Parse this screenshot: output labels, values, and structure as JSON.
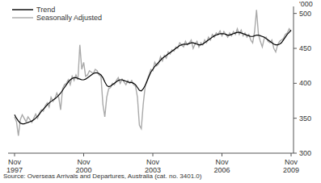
{
  "chart_data": {
    "type": "line",
    "y_label": "'000",
    "source": "Source: Overseas Arrivals and Departures, Australia (cat. no. 3401.0)",
    "legend": "top-left",
    "categories": [
      "Nov 1997",
      null,
      null,
      null,
      null,
      null,
      null,
      null,
      null,
      null,
      null,
      null,
      null,
      null,
      null,
      null,
      null,
      null,
      null,
      null,
      null,
      null,
      null,
      null,
      null,
      null,
      null,
      null,
      null,
      null,
      null,
      null,
      null,
      null,
      null,
      null,
      "Nov 2000",
      null,
      null,
      null,
      null,
      null,
      null,
      null,
      null,
      null,
      null,
      null,
      null,
      null,
      null,
      null,
      null,
      null,
      null,
      null,
      null,
      null,
      null,
      null,
      null,
      null,
      null,
      null,
      null,
      null,
      null,
      null,
      null,
      null,
      null,
      null,
      "Nov 2003",
      null,
      null,
      null,
      null,
      null,
      null,
      null,
      null,
      null,
      null,
      null,
      null,
      null,
      null,
      null,
      null,
      null,
      null,
      null,
      null,
      null,
      null,
      null,
      null,
      null,
      null,
      null,
      null,
      null,
      null,
      null,
      null,
      null,
      null,
      null,
      "Nov 2006",
      null,
      null,
      null,
      null,
      null,
      null,
      null,
      null,
      null,
      null,
      null,
      null,
      null,
      null,
      null,
      null,
      null,
      null,
      null,
      null,
      null,
      null,
      null,
      null,
      null,
      null,
      null,
      null,
      null,
      null,
      null,
      null,
      null,
      null,
      null,
      "Nov 2009"
    ],
    "series": [
      {
        "name": "Trend",
        "color": "#000000",
        "values": [
          355,
          350,
          346,
          343,
          342,
          342,
          343,
          344,
          345,
          346,
          348,
          350,
          353,
          356,
          360,
          363,
          366,
          369,
          372,
          374,
          376,
          378,
          380,
          383,
          386,
          390,
          394,
          398,
          402,
          405,
          407,
          408,
          408,
          407,
          406,
          405,
          405,
          406,
          408,
          410,
          412,
          414,
          415,
          415,
          414,
          412,
          408,
          402,
          397,
          395,
          396,
          398,
          400,
          402,
          404,
          405,
          405,
          404,
          403,
          402,
          401,
          401,
          400,
          398,
          394,
          390,
          389,
          392,
          397,
          403,
          410,
          416,
          420,
          424,
          427,
          430,
          433,
          436,
          438,
          440,
          442,
          444,
          446,
          448,
          450,
          452,
          454,
          455,
          456,
          456,
          456,
          457,
          458,
          458,
          457,
          456,
          455,
          455,
          456,
          458,
          460,
          462,
          464,
          466,
          468,
          469,
          470,
          471,
          471,
          471,
          470,
          469,
          469,
          470,
          471,
          472,
          473,
          473,
          472,
          471,
          470,
          469,
          468,
          467,
          467,
          468,
          469,
          469,
          468,
          467,
          466,
          464,
          462,
          460,
          458,
          456,
          455,
          455,
          456,
          458,
          462,
          466,
          470,
          473,
          476
        ]
      },
      {
        "name": "Seasonally Adjusted",
        "color": "#aaaaaa",
        "values": [
          352,
          345,
          325,
          348,
          355,
          350,
          345,
          352,
          348,
          344,
          350,
          356,
          350,
          358,
          362,
          360,
          368,
          372,
          366,
          380,
          374,
          378,
          386,
          380,
          362,
          392,
          398,
          400,
          405,
          398,
          410,
          404,
          412,
          405,
          455,
          420,
          430,
          410,
          412,
          418,
          416,
          414,
          420,
          418,
          412,
          410,
          370,
          352,
          380,
          392,
          394,
          400,
          398,
          404,
          408,
          400,
          406,
          402,
          398,
          404,
          400,
          404,
          398,
          396,
          380,
          340,
          335,
          370,
          395,
          405,
          412,
          420,
          418,
          430,
          425,
          428,
          438,
          432,
          440,
          436,
          445,
          442,
          448,
          446,
          452,
          450,
          458,
          455,
          452,
          460,
          455,
          458,
          462,
          450,
          456,
          460,
          452,
          458,
          455,
          462,
          458,
          466,
          462,
          470,
          466,
          472,
          470,
          475,
          468,
          474,
          470,
          466,
          472,
          468,
          474,
          470,
          478,
          470,
          476,
          468,
          472,
          466,
          470,
          462,
          458,
          474,
          505,
          470,
          460,
          452,
          464,
          466,
          460,
          458,
          462,
          450,
          445,
          455,
          460,
          462,
          464,
          470,
          472,
          478,
          474
        ]
      }
    ],
    "ylim": [
      300,
      510
    ],
    "yticks": [
      300,
      350,
      400,
      450,
      500
    ]
  }
}
